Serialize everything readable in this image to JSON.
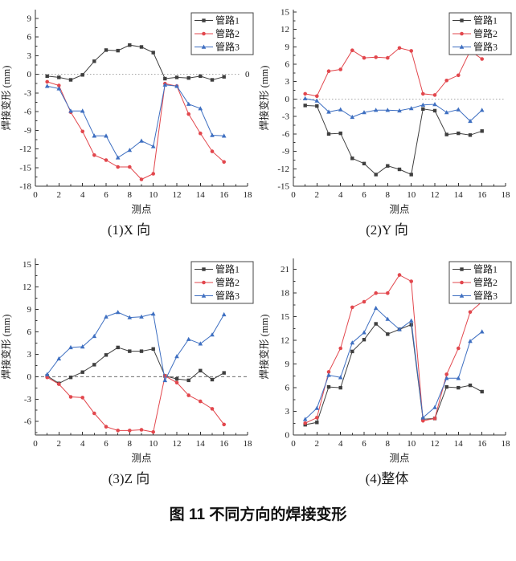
{
  "figure_caption": "图 11  不同方向的焊接变形",
  "chart_data": [
    {
      "type": "line",
      "title": "(1)X 向",
      "xlabel": "测点",
      "ylabel": "焊接变形 (mm)",
      "x": [
        1,
        2,
        3,
        4,
        5,
        6,
        7,
        8,
        9,
        10,
        11,
        12,
        13,
        14,
        15,
        16
      ],
      "xlim": [
        0,
        18
      ],
      "xticks": [
        0,
        2,
        4,
        6,
        8,
        10,
        12,
        14,
        16,
        18
      ],
      "ylim": [
        -18,
        10.4
      ],
      "yticks": [
        -18,
        -15,
        -12,
        -9,
        -6,
        -3,
        0,
        3,
        6,
        9
      ],
      "grid": false,
      "legend_position": "top-right",
      "zero_line": {
        "show": true,
        "style": "dotted",
        "label": "0"
      },
      "series": [
        {
          "name": "管路1",
          "color": "#3f3f3f",
          "marker": "square",
          "values": [
            -0.3,
            -0.5,
            -0.9,
            -0.1,
            2.1,
            3.9,
            3.8,
            4.7,
            4.4,
            3.5,
            -0.7,
            -0.5,
            -0.6,
            -0.3,
            -0.9,
            -0.4
          ]
        },
        {
          "name": "管路2",
          "color": "#e2474d",
          "marker": "circle",
          "values": [
            -1.2,
            -1.8,
            -6.1,
            -9.2,
            -13.0,
            -13.8,
            -14.9,
            -14.9,
            -16.9,
            -16.0,
            -1.5,
            -1.9,
            -6.4,
            -9.5,
            -12.4,
            -14.1
          ]
        },
        {
          "name": "管路3",
          "color": "#3e6fc1",
          "marker": "triangle",
          "values": [
            -1.9,
            -2.3,
            -5.9,
            -5.9,
            -9.9,
            -9.9,
            -13.4,
            -12.2,
            -10.7,
            -11.6,
            -1.7,
            -1.9,
            -4.8,
            -5.5,
            -9.8,
            -9.9
          ]
        }
      ]
    },
    {
      "type": "line",
      "title": "(2)Y 向",
      "xlabel": "测点",
      "ylabel": "焊接变形 (mm)",
      "x": [
        1,
        2,
        3,
        4,
        5,
        6,
        7,
        8,
        9,
        10,
        11,
        12,
        13,
        14,
        15,
        16
      ],
      "xlim": [
        0,
        18
      ],
      "xticks": [
        0,
        2,
        4,
        6,
        8,
        10,
        12,
        14,
        16,
        18
      ],
      "ylim": [
        -15,
        15.4
      ],
      "yticks": [
        -15,
        -12,
        -9,
        -6,
        -3,
        0,
        3,
        6,
        9,
        12,
        15
      ],
      "grid": false,
      "legend_position": "top-right",
      "zero_line": {
        "show": true,
        "style": "dotted",
        "label": ""
      },
      "series": [
        {
          "name": "管路1",
          "color": "#3f3f3f",
          "marker": "square",
          "values": [
            -1.1,
            -1.2,
            -6.0,
            -5.9,
            -10.2,
            -11.1,
            -13.0,
            -11.5,
            -12.1,
            -13.0,
            -1.7,
            -2.0,
            -6.1,
            -5.9,
            -6.2,
            -5.5
          ]
        },
        {
          "name": "管路2",
          "color": "#e2474d",
          "marker": "circle",
          "values": [
            0.9,
            0.5,
            4.8,
            5.1,
            8.4,
            7.1,
            7.2,
            7.1,
            8.8,
            8.3,
            0.9,
            0.7,
            3.2,
            4.1,
            8.3,
            6.9
          ]
        },
        {
          "name": "管路3",
          "color": "#3e6fc1",
          "marker": "triangle",
          "values": [
            0.1,
            -0.3,
            -2.2,
            -1.8,
            -3.1,
            -2.3,
            -1.9,
            -1.9,
            -2.0,
            -1.6,
            -1.0,
            -0.9,
            -2.3,
            -1.8,
            -3.8,
            -1.9
          ]
        }
      ]
    },
    {
      "type": "line",
      "title": "(3)Z 向",
      "xlabel": "测点",
      "ylabel": "焊接变形 (mm)",
      "x": [
        1,
        2,
        3,
        4,
        5,
        6,
        7,
        8,
        9,
        10,
        11,
        12,
        13,
        14,
        15,
        16
      ],
      "xlim": [
        0,
        18
      ],
      "xticks": [
        0,
        2,
        4,
        6,
        8,
        10,
        12,
        14,
        16,
        18
      ],
      "ylim": [
        -7.8,
        15.8
      ],
      "yticks": [
        -6,
        -3,
        0,
        3,
        6,
        9,
        12,
        15
      ],
      "grid": false,
      "legend_position": "top-right",
      "zero_line": {
        "show": true,
        "style": "dashed",
        "label": ""
      },
      "series": [
        {
          "name": "管路1",
          "color": "#3f3f3f",
          "marker": "square",
          "values": [
            0.1,
            -0.9,
            -0.1,
            0.6,
            1.6,
            2.9,
            3.9,
            3.4,
            3.4,
            3.7,
            0.1,
            -0.3,
            -0.5,
            0.8,
            -0.4,
            0.5
          ]
        },
        {
          "name": "管路2",
          "color": "#e2474d",
          "marker": "circle",
          "values": [
            -0.1,
            -1.0,
            -2.7,
            -2.8,
            -4.9,
            -6.7,
            -7.2,
            -7.2,
            -7.1,
            -7.4,
            0.1,
            -0.8,
            -2.5,
            -3.3,
            -4.3,
            -6.4
          ]
        },
        {
          "name": "管路3",
          "color": "#3e6fc1",
          "marker": "triangle",
          "values": [
            0.3,
            2.4,
            3.9,
            4.0,
            5.4,
            8.0,
            8.6,
            7.9,
            8.0,
            8.4,
            -0.5,
            2.7,
            5.0,
            4.4,
            5.6,
            8.3
          ]
        }
      ]
    },
    {
      "type": "line",
      "title": "(4)整体",
      "xlabel": "测点",
      "ylabel": "焊接变形 (mm)",
      "x": [
        1,
        2,
        3,
        4,
        5,
        6,
        7,
        8,
        9,
        10,
        11,
        12,
        13,
        14,
        15,
        16
      ],
      "xlim": [
        0,
        18
      ],
      "xticks": [
        0,
        2,
        4,
        6,
        8,
        10,
        12,
        14,
        16,
        18
      ],
      "ylim": [
        0,
        22.4
      ],
      "yticks": [
        0,
        3,
        6,
        9,
        12,
        15,
        18,
        21
      ],
      "grid": false,
      "legend_position": "top-right",
      "zero_line": {
        "show": false,
        "style": "",
        "label": ""
      },
      "series": [
        {
          "name": "管路1",
          "color": "#3f3f3f",
          "marker": "square",
          "values": [
            1.3,
            1.6,
            6.1,
            6.0,
            10.6,
            12.1,
            14.1,
            12.8,
            13.4,
            14.0,
            2.0,
            2.1,
            6.1,
            6.0,
            6.3,
            5.5
          ]
        },
        {
          "name": "管路2",
          "color": "#e2474d",
          "marker": "circle",
          "values": [
            1.5,
            2.2,
            8.0,
            11.0,
            16.2,
            16.9,
            18.0,
            18.0,
            20.3,
            19.5,
            1.8,
            2.1,
            7.7,
            11.0,
            15.6,
            16.9
          ]
        },
        {
          "name": "管路3",
          "color": "#3e6fc1",
          "marker": "triangle",
          "values": [
            2.0,
            3.4,
            7.6,
            7.3,
            11.7,
            13.0,
            16.1,
            14.7,
            13.4,
            14.5,
            2.2,
            3.5,
            7.2,
            7.2,
            11.9,
            13.1
          ]
        }
      ]
    }
  ]
}
